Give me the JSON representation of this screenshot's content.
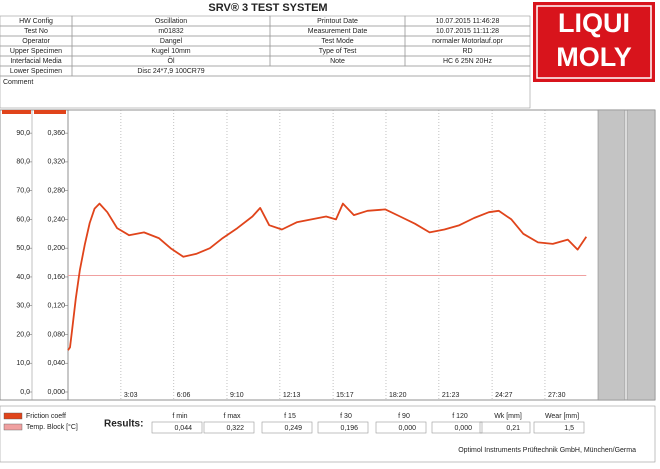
{
  "header": {
    "title": "SRV® 3 TEST SYSTEM",
    "rows": [
      [
        "HW Config",
        "Oscillation",
        "Printout Date",
        "10.07.2015 11:46:28"
      ],
      [
        "Test No",
        "m01832",
        "Measurement Date",
        "10.07.2015 11:11:28"
      ],
      [
        "Operator",
        "Dangel",
        "Test Mode",
        "normaler Motorlauf.opr"
      ],
      [
        "Upper Specimen",
        "Kugel 10mm",
        "Type of Test",
        "RD"
      ],
      [
        "Interfacial Media",
        "Öl",
        "Note",
        "HC 6 25N 20Hz"
      ],
      [
        "Lower Specimen",
        "Disc 24*7,9  100CR79"
      ]
    ],
    "comment": "Comment",
    "logo": [
      "LIQUI",
      "MOLY"
    ]
  },
  "chart_data": {
    "type": "line",
    "xlim": [
      0,
      1830
    ],
    "xticks": [
      {
        "value": 183,
        "label": "3:03"
      },
      {
        "value": 366,
        "label": "6:06"
      },
      {
        "value": 550,
        "label": "9:10"
      },
      {
        "value": 733,
        "label": "12:13"
      },
      {
        "value": 917,
        "label": "15:17"
      },
      {
        "value": 1100,
        "label": "18:20"
      },
      {
        "value": 1283,
        "label": "21:23"
      },
      {
        "value": 1467,
        "label": "24:27"
      },
      {
        "value": 1650,
        "label": "27:30"
      }
    ],
    "ylim": [
      0,
      97
    ],
    "yticks": [
      {
        "value": 0,
        "label": "0,0"
      },
      {
        "value": 10,
        "label": "10,0"
      },
      {
        "value": 20,
        "label": "20,0"
      },
      {
        "value": 30,
        "label": "30,0"
      },
      {
        "value": 40,
        "label": "40,0"
      },
      {
        "value": 50,
        "label": "50,0"
      },
      {
        "value": 60,
        "label": "60,0"
      },
      {
        "value": 70,
        "label": "70,0"
      },
      {
        "value": 80,
        "label": "80,0"
      },
      {
        "value": 90,
        "label": "90,0"
      }
    ],
    "y2lim": [
      0,
      0.388
    ],
    "y2ticks": [
      {
        "value": 0,
        "label": "0,000"
      },
      {
        "value": 0.04,
        "label": "0,040"
      },
      {
        "value": 0.08,
        "label": "0,080"
      },
      {
        "value": 0.12,
        "label": "0,120"
      },
      {
        "value": 0.16,
        "label": "0,160"
      },
      {
        "value": 0.2,
        "label": "0,200"
      },
      {
        "value": 0.24,
        "label": "0,240"
      },
      {
        "value": 0.28,
        "label": "0,280"
      },
      {
        "value": 0.32,
        "label": "0,320"
      },
      {
        "value": 0.36,
        "label": "0,360"
      }
    ],
    "series": [
      {
        "name": "Friction coeff",
        "color": "#e0441b",
        "axis": "y2",
        "x": [
          0,
          7,
          14,
          27,
          41,
          58,
          75,
          92,
          109,
          136,
          170,
          211,
          263,
          314,
          355,
          399,
          443,
          491,
          535,
          586,
          638,
          665,
          696,
          740,
          791,
          842,
          893,
          927,
          951,
          989,
          1036,
          1098,
          1149,
          1200,
          1251,
          1302,
          1354,
          1405,
          1456,
          1490,
          1534,
          1575,
          1626,
          1677,
          1729,
          1763,
          1793
        ],
        "values": [
          0.058,
          0.062,
          0.085,
          0.13,
          0.17,
          0.205,
          0.235,
          0.255,
          0.262,
          0.25,
          0.228,
          0.218,
          0.222,
          0.214,
          0.2,
          0.188,
          0.192,
          0.2,
          0.214,
          0.228,
          0.244,
          0.256,
          0.232,
          0.226,
          0.236,
          0.24,
          0.244,
          0.24,
          0.262,
          0.246,
          0.252,
          0.254,
          0.244,
          0.234,
          0.222,
          0.226,
          0.232,
          0.242,
          0.25,
          0.252,
          0.24,
          0.22,
          0.208,
          0.206,
          0.212,
          0.198,
          0.216
        ]
      },
      {
        "name": "Temp. Block [°C]",
        "color": "#f0a0a0",
        "x": [
          0,
          1793
        ],
        "values": [
          40.5,
          40.5
        ]
      }
    ]
  },
  "results": {
    "title": "Results:",
    "labels": [
      "f min",
      "f max",
      "f 15",
      "f 30",
      "f 90",
      "f 120",
      "Wk [mm]",
      "Wear [mm]"
    ],
    "values": [
      "0,044",
      "0,322",
      "0,249",
      "0,196",
      "0,000",
      "0,000",
      "0,21",
      "1,5"
    ]
  },
  "footer": "Optimol Instruments Prüftechnik GmbH, München/Germa"
}
